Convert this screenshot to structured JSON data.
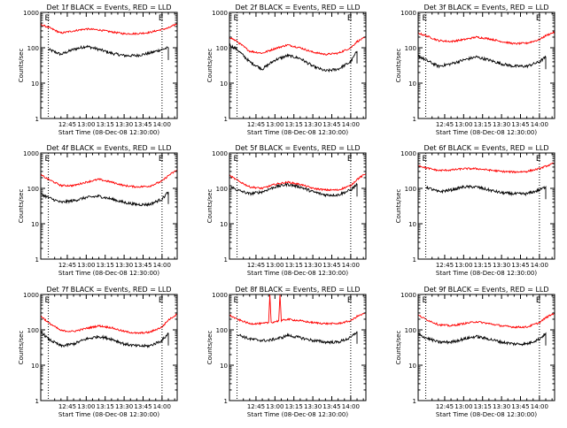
{
  "style": {
    "events_color": "#000000",
    "lld_color": "#ff0000",
    "axis_color": "#000000",
    "background": "#ffffff"
  },
  "common": {
    "ylabel": "Counts/sec",
    "xlabel": "Start Time (08-Dec-08 12:30:00)",
    "xticks": [
      "12:45",
      "13:00",
      "13:15",
      "13:30",
      "13:45",
      "14:00"
    ],
    "yticks": [
      "1",
      "10",
      "100",
      "1000"
    ],
    "marker": "E"
  },
  "chart_data": [
    {
      "type": "line",
      "title": "Det 1f BLACK = Events, RED = LLD",
      "x_unit": "minutes after 12:30",
      "xlim": [
        -6,
        102
      ],
      "ylim": [
        1,
        1000
      ],
      "yscale": "log",
      "grid": false,
      "event_markers_x": [
        0,
        90
      ],
      "series": [
        {
          "name": "Events",
          "color": "#000000",
          "x": [
            0,
            10,
            20,
            30,
            40,
            50,
            60,
            70,
            80,
            90,
            95
          ],
          "y": [
            90,
            65,
            90,
            110,
            90,
            70,
            60,
            60,
            70,
            90,
            100
          ]
        },
        {
          "name": "LLD",
          "color": "#ff0000",
          "x": [
            -6,
            0,
            10,
            20,
            30,
            40,
            50,
            60,
            70,
            80,
            90,
            95,
            102
          ],
          "y": [
            450,
            380,
            260,
            300,
            340,
            320,
            280,
            250,
            250,
            270,
            330,
            360,
            480
          ]
        }
      ]
    },
    {
      "type": "line",
      "title": "Det 2f BLACK = Events, RED = LLD",
      "x_unit": "minutes after 12:30",
      "xlim": [
        -6,
        102
      ],
      "ylim": [
        1,
        1000
      ],
      "yscale": "log",
      "grid": false,
      "event_markers_x": [
        0,
        90
      ],
      "series": [
        {
          "name": "Events",
          "color": "#000000",
          "x": [
            -6,
            0,
            10,
            20,
            30,
            40,
            50,
            60,
            70,
            80,
            90,
            95
          ],
          "y": [
            120,
            90,
            40,
            25,
            45,
            60,
            50,
            30,
            22,
            25,
            40,
            80
          ]
        },
        {
          "name": "LLD",
          "color": "#ff0000",
          "x": [
            -6,
            0,
            10,
            20,
            30,
            40,
            50,
            60,
            70,
            80,
            90,
            95,
            102
          ],
          "y": [
            200,
            150,
            80,
            70,
            95,
            120,
            100,
            75,
            65,
            70,
            100,
            150,
            200
          ]
        }
      ]
    },
    {
      "type": "line",
      "title": "Det 3f BLACK = Events, RED = LLD",
      "x_unit": "minutes after 12:30",
      "xlim": [
        -6,
        102
      ],
      "ylim": [
        1,
        1000
      ],
      "yscale": "log",
      "grid": false,
      "event_markers_x": [
        0,
        90
      ],
      "series": [
        {
          "name": "Events",
          "color": "#000000",
          "x": [
            -6,
            0,
            10,
            20,
            30,
            40,
            50,
            60,
            70,
            80,
            90,
            95
          ],
          "y": [
            60,
            45,
            30,
            35,
            45,
            55,
            45,
            35,
            30,
            30,
            40,
            55
          ]
        },
        {
          "name": "LLD",
          "color": "#ff0000",
          "x": [
            -6,
            0,
            10,
            20,
            30,
            40,
            50,
            60,
            70,
            80,
            90,
            95,
            102
          ],
          "y": [
            260,
            220,
            160,
            150,
            170,
            200,
            180,
            150,
            130,
            135,
            170,
            220,
            280
          ]
        }
      ]
    },
    {
      "type": "line",
      "title": "Det 4f BLACK = Events, RED = LLD",
      "x_unit": "minutes after 12:30",
      "xlim": [
        -6,
        102
      ],
      "ylim": [
        1,
        1000
      ],
      "yscale": "log",
      "grid": false,
      "event_markers_x": [
        0,
        90
      ],
      "series": [
        {
          "name": "Events",
          "color": "#000000",
          "x": [
            -6,
            0,
            10,
            20,
            30,
            40,
            50,
            60,
            70,
            80,
            90,
            95
          ],
          "y": [
            70,
            55,
            40,
            45,
            55,
            60,
            50,
            40,
            35,
            35,
            50,
            80
          ]
        },
        {
          "name": "LLD",
          "color": "#ff0000",
          "x": [
            -6,
            0,
            10,
            20,
            30,
            40,
            50,
            60,
            70,
            80,
            90,
            95,
            102
          ],
          "y": [
            240,
            180,
            120,
            120,
            150,
            180,
            150,
            120,
            110,
            115,
            160,
            230,
            330
          ]
        }
      ]
    },
    {
      "type": "line",
      "title": "Det 5f BLACK = Events, RED = LLD",
      "x_unit": "minutes after 12:30",
      "xlim": [
        -6,
        102
      ],
      "ylim": [
        1,
        1000
      ],
      "yscale": "log",
      "grid": false,
      "event_markers_x": [
        0,
        90
      ],
      "series": [
        {
          "name": "Events",
          "color": "#000000",
          "x": [
            -6,
            0,
            10,
            20,
            30,
            40,
            50,
            60,
            70,
            80,
            90,
            95
          ],
          "y": [
            120,
            90,
            70,
            80,
            110,
            130,
            110,
            80,
            65,
            65,
            90,
            130
          ]
        },
        {
          "name": "LLD",
          "color": "#ff0000",
          "x": [
            -6,
            0,
            10,
            20,
            30,
            40,
            50,
            60,
            70,
            80,
            90,
            95,
            102
          ],
          "y": [
            230,
            170,
            110,
            100,
            130,
            150,
            130,
            100,
            90,
            90,
            120,
            180,
            260
          ]
        }
      ]
    },
    {
      "type": "line",
      "title": "Det 6f BLACK = Events, RED = LLD",
      "x_unit": "minutes after 12:30",
      "xlim": [
        -6,
        102
      ],
      "ylim": [
        1,
        1000
      ],
      "yscale": "log",
      "grid": false,
      "event_markers_x": [
        0,
        90
      ],
      "series": [
        {
          "name": "Events",
          "color": "#000000",
          "x": [
            0,
            10,
            20,
            30,
            40,
            50,
            60,
            70,
            80,
            90,
            95
          ],
          "y": [
            110,
            80,
            90,
            110,
            110,
            90,
            75,
            70,
            70,
            90,
            110
          ]
        },
        {
          "name": "LLD",
          "color": "#ff0000",
          "x": [
            -6,
            0,
            10,
            20,
            30,
            40,
            50,
            60,
            70,
            80,
            90,
            95,
            102
          ],
          "y": [
            450,
            380,
            320,
            330,
            360,
            360,
            330,
            300,
            290,
            300,
            360,
            420,
            520
          ]
        }
      ]
    },
    {
      "type": "line",
      "title": "Det 7f BLACK = Events, RED = LLD",
      "x_unit": "minutes after 12:30",
      "xlim": [
        -6,
        102
      ],
      "ylim": [
        1,
        1000
      ],
      "yscale": "log",
      "grid": false,
      "event_markers_x": [
        0,
        90
      ],
      "series": [
        {
          "name": "Events",
          "color": "#000000",
          "x": [
            -6,
            0,
            10,
            20,
            30,
            40,
            50,
            60,
            70,
            80,
            90,
            95
          ],
          "y": [
            90,
            55,
            35,
            40,
            55,
            65,
            55,
            40,
            35,
            35,
            50,
            80
          ]
        },
        {
          "name": "LLD",
          "color": "#ff0000",
          "x": [
            -6,
            0,
            10,
            20,
            30,
            40,
            50,
            60,
            70,
            80,
            90,
            95,
            102
          ],
          "y": [
            250,
            160,
            95,
            90,
            110,
            130,
            115,
            90,
            80,
            85,
            120,
            190,
            280
          ]
        }
      ]
    },
    {
      "type": "line",
      "title": "Det 8f BLACK = Events, RED = LLD",
      "x_unit": "minutes after 12:30",
      "xlim": [
        -6,
        102
      ],
      "ylim": [
        1,
        1000
      ],
      "yscale": "log",
      "grid": false,
      "event_markers_x": [
        0,
        90
      ],
      "series": [
        {
          "name": "Events",
          "color": "#000000",
          "x": [
            0,
            10,
            20,
            25,
            30,
            35,
            40,
            50,
            60,
            70,
            80,
            90,
            95
          ],
          "y": [
            75,
            55,
            50,
            50,
            55,
            60,
            70,
            60,
            50,
            45,
            45,
            60,
            90
          ]
        },
        {
          "name": "LLD",
          "color": "#ff0000",
          "x": [
            -6,
            0,
            10,
            20,
            25,
            26,
            27,
            30,
            33,
            34,
            35,
            40,
            50,
            60,
            70,
            80,
            90,
            95,
            102
          ],
          "y": [
            260,
            200,
            150,
            150,
            160,
            1000,
            160,
            170,
            180,
            1000,
            180,
            200,
            180,
            160,
            150,
            150,
            180,
            240,
            300
          ]
        }
      ]
    },
    {
      "type": "line",
      "title": "Det 9f BLACK = Events, RED = LLD",
      "x_unit": "minutes after 12:30",
      "xlim": [
        -6,
        102
      ],
      "ylim": [
        1,
        1000
      ],
      "yscale": "log",
      "grid": false,
      "event_markers_x": [
        0,
        90
      ],
      "series": [
        {
          "name": "Events",
          "color": "#000000",
          "x": [
            -6,
            0,
            10,
            20,
            30,
            40,
            50,
            60,
            70,
            80,
            90,
            95
          ],
          "y": [
            75,
            60,
            45,
            45,
            55,
            65,
            55,
            45,
            40,
            40,
            55,
            80
          ]
        },
        {
          "name": "LLD",
          "color": "#ff0000",
          "x": [
            -6,
            0,
            10,
            20,
            30,
            40,
            50,
            60,
            70,
            80,
            90,
            95,
            102
          ],
          "y": [
            260,
            200,
            140,
            130,
            150,
            170,
            150,
            130,
            120,
            120,
            160,
            220,
            300
          ]
        }
      ]
    }
  ]
}
